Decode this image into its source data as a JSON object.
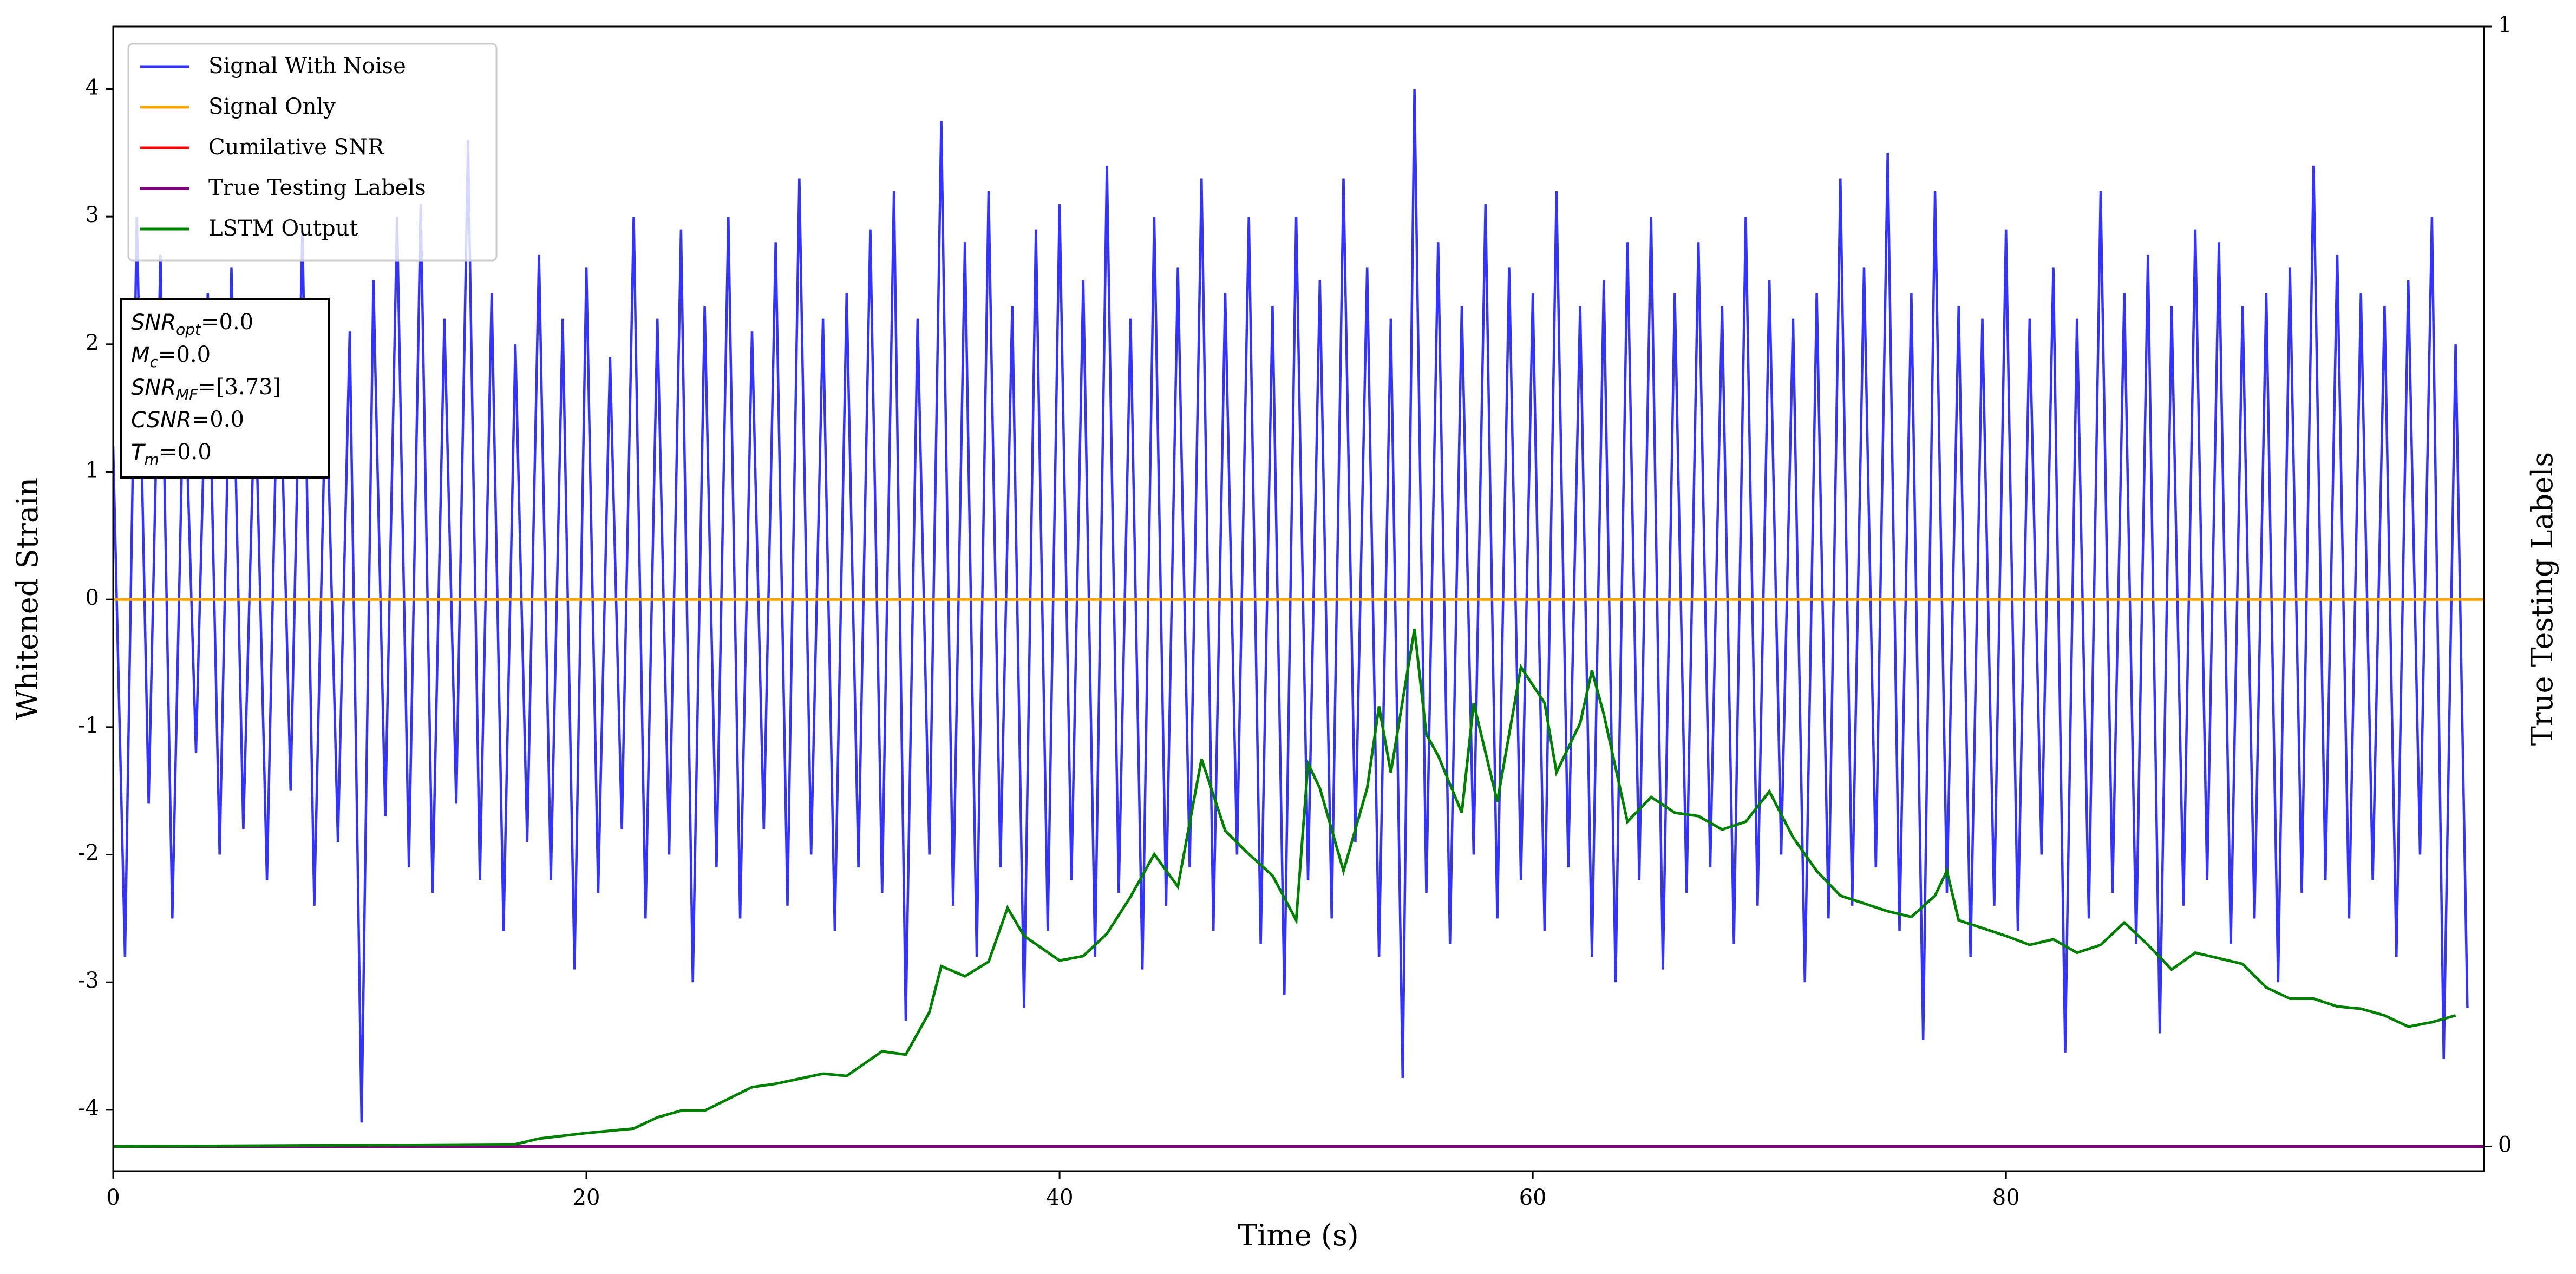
{
  "chart_data": {
    "type": "line",
    "xlabel": "Time (s)",
    "ylabel": "Whitened Strain",
    "y2label": "True Testing Labels",
    "xlim": [
      0,
      100.2
    ],
    "xticks": [
      0,
      20,
      40,
      60,
      80
    ],
    "ylim": [
      -4.48,
      4.49
    ],
    "yticks": [
      -4,
      -3,
      -2,
      -1,
      0,
      1,
      2,
      3,
      4
    ],
    "y2lim": [
      -0.022,
      1
    ],
    "y2ticks": [
      0,
      1
    ],
    "grid": false,
    "legend": "upper left",
    "annotation": [
      {
        "name": "SNR",
        "subscript": "opt",
        "value": "=0.0"
      },
      {
        "name": "M",
        "subscript": "c",
        "value": "=0.0"
      },
      {
        "name": "SNR",
        "subscript": "MF",
        "value": "=[3.73]"
      },
      {
        "name": "CSNR",
        "subscript": null,
        "value": "=0.0"
      },
      {
        "name": "T",
        "subscript": "m",
        "value": "=0.0"
      }
    ],
    "series": [
      {
        "name": "Signal With Noise",
        "color": "#3333ff",
        "x": [
          0,
          0.5,
          1,
          1.5,
          2,
          2.5,
          3,
          3.5,
          4,
          4.5,
          5,
          5.5,
          6,
          6.5,
          7,
          7.5,
          8,
          8.5,
          9,
          9.5,
          10,
          10.5,
          11,
          11.5,
          12,
          12.5,
          13,
          13.5,
          14,
          14.5,
          15,
          15.5,
          16,
          16.5,
          17,
          17.5,
          18,
          18.5,
          19,
          19.5,
          20,
          20.5,
          21,
          21.5,
          22,
          22.5,
          23,
          23.5,
          24,
          24.5,
          25,
          25.5,
          26,
          26.5,
          27,
          27.5,
          28,
          28.5,
          29,
          29.5,
          30,
          30.5,
          31,
          31.5,
          32,
          32.5,
          33,
          33.5,
          34,
          34.5,
          35,
          35.5,
          36,
          36.5,
          37,
          37.5,
          38,
          38.5,
          39,
          39.5,
          40,
          40.5,
          41,
          41.5,
          42,
          42.5,
          43,
          43.5,
          44,
          44.5,
          45,
          45.5,
          46,
          46.5,
          47,
          47.5,
          48,
          48.5,
          49,
          49.5,
          50,
          50.5,
          51,
          51.5,
          52,
          52.5,
          53,
          53.5,
          54,
          54.5,
          55,
          55.5,
          56,
          56.5,
          57,
          57.5,
          58,
          58.5,
          59,
          59.5,
          60,
          60.5,
          61,
          61.5,
          62,
          62.5,
          63,
          63.5,
          64,
          64.5,
          65,
          65.5,
          66,
          66.5,
          67,
          67.5,
          68,
          68.5,
          69,
          69.5,
          70,
          70.5,
          71,
          71.5,
          72,
          72.5,
          73,
          73.5,
          74,
          74.5,
          75,
          75.5,
          76,
          76.5,
          77,
          77.5,
          78,
          78.5,
          79,
          79.5,
          80,
          80.5,
          81,
          81.5,
          82,
          82.5,
          83,
          83.5,
          84,
          84.5,
          85,
          85.5,
          86,
          86.5,
          87,
          87.5,
          88,
          88.5,
          89,
          89.5,
          90,
          90.5,
          91,
          91.5,
          92,
          92.5,
          93,
          93.5,
          94,
          94.5,
          95,
          95.5,
          96,
          96.5,
          97,
          97.5,
          98,
          98.5,
          99,
          99.5
        ],
        "values": [
          1.2,
          -2.8,
          3.0,
          -1.6,
          2.7,
          -2.5,
          1.9,
          -1.2,
          2.4,
          -2.0,
          2.6,
          -1.8,
          1.7,
          -2.2,
          2.3,
          -1.5,
          2.9,
          -2.4,
          1.8,
          -1.9,
          2.1,
          -4.1,
          2.5,
          -1.7,
          3.0,
          -2.1,
          3.1,
          -2.3,
          2.2,
          -1.6,
          3.6,
          -2.2,
          2.4,
          -2.6,
          2.0,
          -1.9,
          2.7,
          -2.2,
          2.2,
          -2.9,
          2.6,
          -2.3,
          1.9,
          -1.8,
          3.0,
          -2.5,
          2.2,
          -2.0,
          2.9,
          -3.0,
          2.3,
          -2.1,
          3.0,
          -2.5,
          2.1,
          -1.8,
          2.8,
          -2.4,
          3.3,
          -2.0,
          2.2,
          -2.6,
          2.4,
          -2.1,
          2.9,
          -2.3,
          3.2,
          -3.3,
          2.2,
          -2.0,
          3.75,
          -2.4,
          2.8,
          -2.8,
          3.2,
          -2.1,
          2.3,
          -3.2,
          2.9,
          -2.6,
          3.1,
          -2.2,
          2.5,
          -2.8,
          3.4,
          -2.3,
          2.2,
          -2.9,
          3.0,
          -2.4,
          2.6,
          -2.1,
          3.3,
          -2.6,
          2.4,
          -2.0,
          3.0,
          -2.7,
          2.3,
          -3.1,
          3.0,
          -2.2,
          2.5,
          -2.5,
          3.3,
          -1.9,
          2.6,
          -2.8,
          2.2,
          -3.75,
          4.0,
          -2.3,
          2.8,
          -2.7,
          2.3,
          -2.0,
          3.1,
          -2.5,
          2.6,
          -2.2,
          2.4,
          -2.6,
          3.2,
          -2.1,
          2.3,
          -2.8,
          2.5,
          -3.0,
          2.8,
          -2.2,
          3.0,
          -2.9,
          2.4,
          -2.3,
          2.8,
          -2.1,
          2.3,
          -2.7,
          3.0,
          -2.4,
          2.5,
          -2.0,
          2.2,
          -3.0,
          2.4,
          -2.5,
          3.3,
          -2.4,
          2.6,
          -2.1,
          3.5,
          -2.6,
          2.4,
          -3.45,
          3.2,
          -2.3,
          2.3,
          -2.8,
          2.2,
          -2.4,
          2.9,
          -2.6,
          2.2,
          -2.0,
          2.6,
          -3.55,
          2.2,
          -2.5,
          3.2,
          -2.3,
          2.4,
          -2.7,
          2.7,
          -3.4,
          2.3,
          -2.4,
          2.9,
          -2.2,
          2.8,
          -2.7,
          2.3,
          -2.5,
          2.4,
          -3.0,
          2.6,
          -2.3,
          3.4,
          -2.2,
          2.7,
          -2.5,
          2.4,
          -2.2,
          2.3,
          -2.8,
          2.5,
          -2.0,
          3.0,
          -3.6,
          2.0,
          -3.2
        ]
      },
      {
        "name": "Signal Only",
        "color": "#ffa500",
        "x": [
          0,
          100.2
        ],
        "values": [
          0,
          0
        ]
      },
      {
        "name": "Cumilative SNR",
        "color": "#ff0000",
        "axis": "y2",
        "x": [
          0,
          100.2
        ],
        "values": [
          0,
          0
        ]
      },
      {
        "name": "True Testing Labels",
        "color": "#800080",
        "axis": "y2",
        "x": [
          0,
          100.2
        ],
        "values": [
          0,
          0
        ]
      },
      {
        "name": "LSTM Output",
        "color": "#008000",
        "axis": "y2",
        "x": [
          0,
          17,
          18,
          20,
          22,
          23,
          24,
          25,
          27,
          28,
          30,
          31,
          32.5,
          33.5,
          34.5,
          35,
          36,
          37,
          37.8,
          38.5,
          40,
          41,
          42,
          43,
          44,
          45,
          46,
          47,
          48,
          49,
          50,
          50.5,
          51,
          52,
          53,
          53.5,
          54,
          55,
          55.5,
          56,
          57,
          57.5,
          58.5,
          59.5,
          60.5,
          61,
          62,
          62.5,
          63,
          64,
          65,
          66,
          67,
          68,
          69,
          70,
          71,
          72,
          73,
          74,
          75,
          76,
          77,
          77.5,
          78,
          79,
          80,
          81,
          82,
          83,
          84,
          85,
          86,
          87,
          88,
          90,
          91,
          92,
          93,
          94,
          95,
          96,
          97,
          98,
          99
        ],
        "values": [
          0,
          0.002,
          0.007,
          0.012,
          0.016,
          0.026,
          0.032,
          0.032,
          0.053,
          0.056,
          0.065,
          0.063,
          0.085,
          0.082,
          0.12,
          0.161,
          0.152,
          0.165,
          0.213,
          0.188,
          0.166,
          0.17,
          0.19,
          0.223,
          0.261,
          0.232,
          0.346,
          0.282,
          0.261,
          0.242,
          0.202,
          0.342,
          0.32,
          0.246,
          0.32,
          0.393,
          0.334,
          0.462,
          0.368,
          0.349,
          0.298,
          0.396,
          0.308,
          0.428,
          0.396,
          0.334,
          0.378,
          0.425,
          0.386,
          0.29,
          0.312,
          0.298,
          0.295,
          0.283,
          0.29,
          0.317,
          0.276,
          0.246,
          0.224,
          0.217,
          0.21,
          0.205,
          0.224,
          0.246,
          0.202,
          0.195,
          0.188,
          0.18,
          0.185,
          0.173,
          0.18,
          0.2,
          0.18,
          0.158,
          0.173,
          0.163,
          0.142,
          0.132,
          0.132,
          0.125,
          0.123,
          0.117,
          0.107,
          0.111,
          0.117
        ]
      }
    ]
  }
}
